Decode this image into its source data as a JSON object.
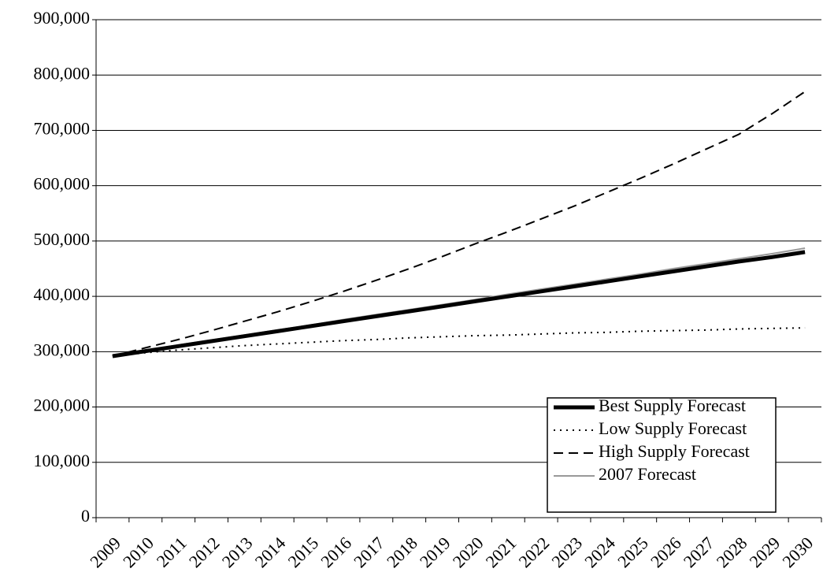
{
  "chart_data": {
    "type": "line",
    "categories": [
      "2009",
      "2010",
      "2011",
      "2012",
      "2013",
      "2014",
      "2015",
      "2016",
      "2017",
      "2018",
      "2019",
      "2020",
      "2021",
      "2022",
      "2023",
      "2024",
      "2025",
      "2026",
      "2027",
      "2028",
      "2029",
      "2030"
    ],
    "series": [
      {
        "name": "2007 Forecast",
        "color": "#999999",
        "line_style": "solid",
        "line_width": 2,
        "values": [
          293000,
          302000,
          312000,
          321000,
          330000,
          339000,
          348000,
          358000,
          367000,
          376000,
          385000,
          394000,
          404000,
          413000,
          422000,
          431000,
          440000,
          450000,
          459000,
          468000,
          477000,
          487000
        ]
      },
      {
        "name": "Best Supply Forecast",
        "color": "#000000",
        "line_style": "solid",
        "line_width": 5,
        "values": [
          292000,
          301000,
          310000,
          319000,
          328000,
          337000,
          346000,
          355000,
          364000,
          373000,
          382000,
          391000,
          400000,
          409000,
          418000,
          427000,
          436000,
          445000,
          454000,
          463000,
          471000,
          480000
        ]
      },
      {
        "name": "Low Supply Forecast",
        "color": "#000000",
        "line_style": "dotted",
        "line_width": 2,
        "values": [
          292000,
          298000,
          303000,
          307000,
          311000,
          314000,
          317000,
          320000,
          322000,
          325000,
          327000,
          329000,
          330000,
          332000,
          334000,
          335000,
          337000,
          338000,
          339000,
          341000,
          342000,
          343000
        ]
      },
      {
        "name": "High Supply Forecast",
        "color": "#000000",
        "line_style": "dashed",
        "line_width": 2,
        "values": [
          292000,
          307000,
          322000,
          338000,
          355000,
          372000,
          390000,
          409000,
          429000,
          450000,
          472000,
          495000,
          517000,
          540000,
          563000,
          588000,
          613000,
          639000,
          666000,
          693000,
          730000,
          770000
        ]
      }
    ],
    "legend_order": [
      1,
      2,
      3,
      0
    ],
    "ylim": [
      0,
      900000
    ],
    "yticks": [
      0,
      {
        "value": 100000,
        "label": "100,000"
      },
      {
        "value": 200000,
        "label": "200,000"
      },
      {
        "value": 300000,
        "label": "300,000"
      },
      {
        "value": 400000,
        "label": "400,000"
      },
      {
        "value": 500000,
        "label": "500,000"
      },
      {
        "value": 600000,
        "label": "600,000"
      },
      {
        "value": 700000,
        "label": "700,000"
      },
      {
        "value": 800000,
        "label": "800,000"
      },
      {
        "value": 900000,
        "label": "900,000"
      }
    ],
    "grid": true,
    "legend": "lower-right"
  }
}
